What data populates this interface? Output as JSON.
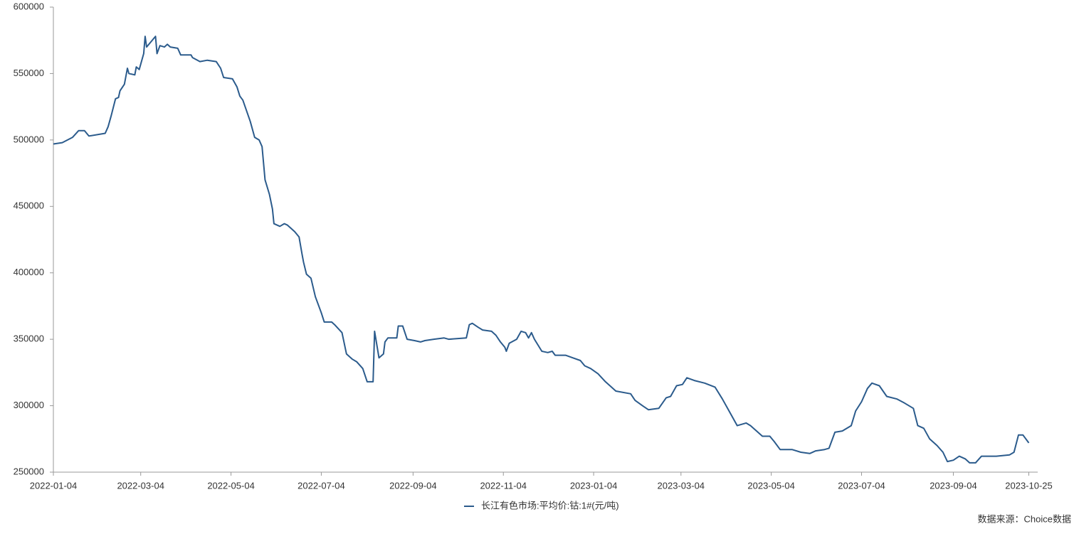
{
  "chart_data": {
    "type": "line",
    "source": "数据来源：Choice数据",
    "x": [
      "2022-01-04",
      "2022-01-10",
      "2022-01-17",
      "2022-01-21",
      "2022-01-25",
      "2022-01-28",
      "2022-02-08",
      "2022-02-10",
      "2022-02-12",
      "2022-02-15",
      "2022-02-17",
      "2022-02-18",
      "2022-02-21",
      "2022-02-23",
      "2022-02-24",
      "2022-02-28",
      "2022-03-01",
      "2022-03-03",
      "2022-03-06",
      "2022-03-07",
      "2022-03-08",
      "2022-03-14",
      "2022-03-15",
      "2022-03-17",
      "2022-03-20",
      "2022-03-22",
      "2022-03-24",
      "2022-03-29",
      "2022-03-31",
      "2022-04-07",
      "2022-04-08",
      "2022-04-13",
      "2022-04-18",
      "2022-04-24",
      "2022-04-27",
      "2022-04-29",
      "2022-05-05",
      "2022-05-08",
      "2022-05-10",
      "2022-05-12",
      "2022-05-17",
      "2022-05-20",
      "2022-05-23",
      "2022-05-25",
      "2022-05-27",
      "2022-05-30",
      "2022-06-01",
      "2022-06-02",
      "2022-06-06",
      "2022-06-09",
      "2022-06-11",
      "2022-06-16",
      "2022-06-19",
      "2022-06-21",
      "2022-06-22",
      "2022-06-24",
      "2022-06-27",
      "2022-06-30",
      "2022-07-04",
      "2022-07-06",
      "2022-07-11",
      "2022-07-13",
      "2022-07-18",
      "2022-07-21",
      "2022-07-25",
      "2022-07-28",
      "2022-08-01",
      "2022-08-04",
      "2022-08-08",
      "2022-08-09",
      "2022-08-12",
      "2022-08-15",
      "2022-08-16",
      "2022-08-18",
      "2022-08-24",
      "2022-08-25",
      "2022-08-28",
      "2022-08-31",
      "2022-09-05",
      "2022-09-09",
      "2022-09-12",
      "2022-09-18",
      "2022-09-25",
      "2022-09-28",
      "2022-10-10",
      "2022-10-12",
      "2022-10-14",
      "2022-10-18",
      "2022-10-21",
      "2022-10-27",
      "2022-10-30",
      "2022-11-02",
      "2022-11-05",
      "2022-11-06",
      "2022-11-08",
      "2022-11-13",
      "2022-11-16",
      "2022-11-19",
      "2022-11-21",
      "2022-11-23",
      "2022-11-25",
      "2022-11-30",
      "2022-12-04",
      "2022-12-07",
      "2022-12-09",
      "2022-12-16",
      "2022-12-21",
      "2022-12-26",
      "2022-12-29",
      "2023-01-02",
      "2023-01-07",
      "2023-01-12",
      "2023-01-15",
      "2023-01-19",
      "2023-01-29",
      "2023-02-01",
      "2023-02-06",
      "2023-02-10",
      "2023-02-17",
      "2023-02-22",
      "2023-02-25",
      "2023-03-01",
      "2023-03-05",
      "2023-03-08",
      "2023-03-13",
      "2023-03-20",
      "2023-03-27",
      "2023-04-01",
      "2023-04-06",
      "2023-04-11",
      "2023-04-17",
      "2023-04-20",
      "2023-04-25",
      "2023-04-28",
      "2023-05-03",
      "2023-05-06",
      "2023-05-10",
      "2023-05-18",
      "2023-05-24",
      "2023-05-30",
      "2023-06-03",
      "2023-06-09",
      "2023-06-12",
      "2023-06-16",
      "2023-06-21",
      "2023-06-27",
      "2023-06-30",
      "2023-07-04",
      "2023-07-08",
      "2023-07-11",
      "2023-07-16",
      "2023-07-21",
      "2023-07-28",
      "2023-08-02",
      "2023-08-08",
      "2023-08-11",
      "2023-08-15",
      "2023-08-19",
      "2023-08-24",
      "2023-08-28",
      "2023-08-31",
      "2023-09-04",
      "2023-09-08",
      "2023-09-12",
      "2023-09-15",
      "2023-09-19",
      "2023-09-23",
      "2023-09-28",
      "2023-10-03",
      "2023-10-12",
      "2023-10-15",
      "2023-10-18",
      "2023-10-21",
      "2023-10-25"
    ],
    "series": [
      {
        "name": "长江有色市场:平均价:钴:1#(元/吨)",
        "color": "#2b5b8c",
        "values": [
          497000,
          498000,
          502000,
          507000,
          507000,
          503000,
          505000,
          510000,
          518000,
          531000,
          532000,
          537000,
          542000,
          554000,
          550000,
          549000,
          555000,
          553000,
          565000,
          578000,
          570000,
          578000,
          565000,
          571000,
          570000,
          572000,
          570000,
          569000,
          564000,
          564000,
          562000,
          559000,
          560000,
          559000,
          554000,
          547000,
          546000,
          540000,
          533000,
          530000,
          514000,
          502000,
          500000,
          495000,
          470000,
          459000,
          448000,
          437000,
          435000,
          437000,
          436000,
          431000,
          427000,
          414000,
          408000,
          399000,
          396000,
          382000,
          370000,
          363000,
          363000,
          361000,
          355000,
          339000,
          335000,
          333000,
          328000,
          318000,
          318000,
          356000,
          336000,
          339000,
          348000,
          351000,
          351000,
          360000,
          360000,
          350000,
          349000,
          348000,
          349000,
          350000,
          351000,
          350000,
          351000,
          361000,
          362000,
          359000,
          357000,
          356000,
          353000,
          348000,
          344000,
          341000,
          347000,
          350000,
          356000,
          355000,
          351000,
          355000,
          350000,
          341000,
          340000,
          341000,
          338000,
          338000,
          336000,
          334000,
          330000,
          328000,
          324000,
          318000,
          315000,
          311000,
          309000,
          304000,
          300000,
          297000,
          298000,
          306000,
          307000,
          315000,
          316000,
          321000,
          319000,
          317000,
          314000,
          305000,
          295000,
          285000,
          287000,
          285000,
          280000,
          277000,
          277000,
          273000,
          267000,
          267000,
          265000,
          264000,
          266000,
          267000,
          268000,
          280000,
          281000,
          285000,
          296000,
          303000,
          313000,
          317000,
          315000,
          307000,
          305000,
          302000,
          298000,
          285000,
          283000,
          275000,
          270000,
          265000,
          258000,
          259000,
          262000,
          260000,
          257000,
          257000,
          262000,
          262000,
          262000,
          263000,
          265000,
          278000,
          278000,
          272000
        ]
      }
    ],
    "xlim": [
      "2022-01-04",
      "2023-10-31"
    ],
    "xticks": [
      "2022-01-04",
      "2022-03-04",
      "2022-05-04",
      "2022-07-04",
      "2022-09-04",
      "2022-11-04",
      "2023-01-04",
      "2023-03-04",
      "2023-05-04",
      "2023-07-04",
      "2023-09-04",
      "2023-10-25"
    ],
    "ylim": [
      250000,
      600000
    ],
    "yticks": [
      250000,
      300000,
      350000,
      400000,
      450000,
      500000,
      550000,
      600000
    ],
    "grid": false,
    "legend": "bottom"
  }
}
